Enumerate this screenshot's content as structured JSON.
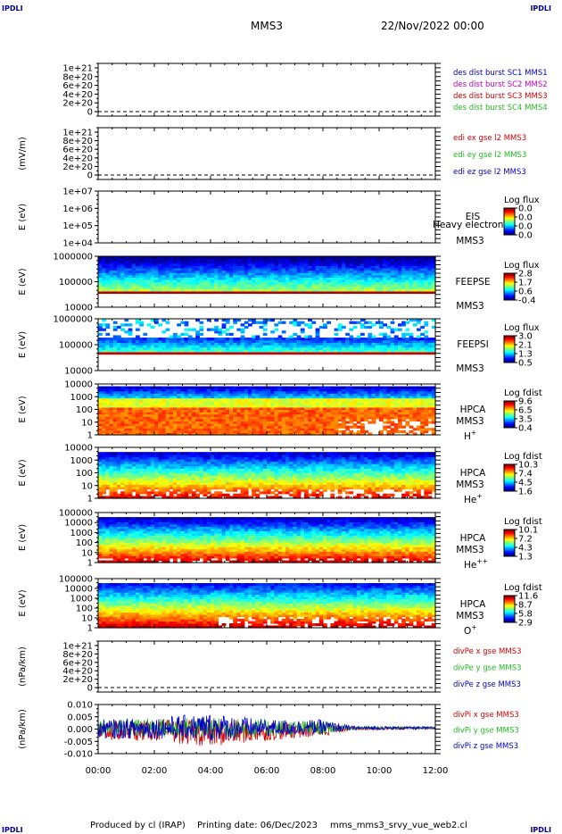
{
  "header": {
    "corner_label": "IPDLI",
    "spacecraft": "MMS3",
    "date": "22/Nov/2022 00:00"
  },
  "footer": {
    "produced_by": "Produced by cl (IRAP)",
    "printing_date": "Printing date: 06/Dec/2023",
    "script_name": "mms_mms3_srvy_vue_web2.cl"
  },
  "x_axis": {
    "ticks": [
      "00:00",
      "02:00",
      "04:00",
      "06:00",
      "08:00",
      "10:00",
      "12:00"
    ],
    "range_hours": [
      0,
      12
    ]
  },
  "colors": {
    "red": "#d40000",
    "magenta": "#c000c0",
    "green": "#22bb22",
    "blue": "#0000c8",
    "spec_red": "#b40000",
    "axis": "#000000"
  },
  "panels": [
    {
      "id": "des_dist_burst",
      "kind": "line",
      "ylabel": "",
      "yticks": [
        "1e+21",
        "8e+20",
        "6e+20",
        "4e+20",
        "2e+20",
        "0"
      ],
      "dashed_zero": true,
      "legend": [
        {
          "text": "des dist burst SC1 MMS1",
          "color": "#0000c8"
        },
        {
          "text": "des dist burst SC2 MMS2",
          "color": "#c000c0"
        },
        {
          "text": "des dist burst SC3 MMS3",
          "color": "#d40000"
        },
        {
          "text": "des dist burst SC4 MMS4",
          "color": "#22bb22"
        }
      ]
    },
    {
      "id": "edi_e",
      "kind": "line",
      "ylabel": "(mV/m)",
      "yticks": [
        "1e+21",
        "8e+20",
        "6e+20",
        "4e+20",
        "2e+20",
        "0"
      ],
      "dashed_zero": true,
      "legend": [
        {
          "text": "edi ex gse l2 MMS3",
          "color": "#d40000"
        },
        {
          "text": "edi ey gse l2 MMS3",
          "color": "#22bb22"
        },
        {
          "text": "edi ez gse l2 MMS3",
          "color": "#0000c8"
        }
      ]
    },
    {
      "id": "eis",
      "kind": "spec",
      "ylabel": "E (eV)",
      "yticks": [
        "1e+07",
        "1e+06",
        "1e+05",
        "1e+04"
      ],
      "label_lines": [
        "EIS",
        "MMS3"
      ],
      "overlap_text": "Heavy electron to",
      "cbar_title": "Log flux",
      "cbar_ticks": [
        "0.0",
        "0.0",
        "0.0",
        "0.0"
      ],
      "spectrum": null
    },
    {
      "id": "feepse",
      "kind": "spec",
      "ylabel": "E (eV)",
      "yticks": [
        "1000000",
        "100000",
        "10000"
      ],
      "label_lines": [
        "FEEPSE",
        "MMS3"
      ],
      "cbar_title": "Log flux",
      "cbar_ticks": [
        "2.8",
        "1.7",
        "0.6",
        "-0.4"
      ],
      "spectrum": {
        "profile": "feepse",
        "sparse": false
      }
    },
    {
      "id": "feepsi",
      "kind": "spec",
      "ylabel": "E (eV)",
      "yticks": [
        "1000000",
        "100000",
        "10000"
      ],
      "label_lines": [
        "FEEPSI",
        "MMS3"
      ],
      "cbar_title": "Log flux",
      "cbar_ticks": [
        "3.0",
        "2.1",
        "1.3",
        "0.5"
      ],
      "spectrum": {
        "profile": "feepsi",
        "sparse": true
      }
    },
    {
      "id": "hpca_h",
      "kind": "spec",
      "ylabel": "E (eV)",
      "yticks": [
        "10000",
        "1000",
        "100",
        "10",
        "1"
      ],
      "label_lines": [
        "HPCA",
        "MMS3"
      ],
      "species": "H",
      "species_sup": "+",
      "cbar_title": "Log fdist",
      "cbar_ticks": [
        "9.6",
        "6.5",
        "3.5",
        "0.4"
      ],
      "spectrum": {
        "profile": "hpca_h",
        "sparse": false
      }
    },
    {
      "id": "hpca_he",
      "kind": "spec",
      "ylabel": "E (eV)",
      "yticks": [
        "10000",
        "1000",
        "100",
        "10",
        "1"
      ],
      "label_lines": [
        "HPCA",
        "MMS3"
      ],
      "species": "He",
      "species_sup": "+",
      "cbar_title": "Log fdist",
      "cbar_ticks": [
        "10.3",
        "7.4",
        "4.5",
        "1.6"
      ],
      "spectrum": {
        "profile": "hpca_he",
        "sparse": false
      }
    },
    {
      "id": "hpca_hepp",
      "kind": "spec",
      "ylabel": "E (eV)",
      "yticks": [
        "100000",
        "10000",
        "1000",
        "100",
        "10",
        "1"
      ],
      "label_lines": [
        "HPCA",
        "MMS3"
      ],
      "species": "He",
      "species_sup": "++",
      "cbar_title": "Log fdist",
      "cbar_ticks": [
        "10.1",
        "7.2",
        "4.3",
        "1.3"
      ],
      "spectrum": {
        "profile": "hpca_hepp",
        "sparse": false
      }
    },
    {
      "id": "hpca_o",
      "kind": "spec",
      "ylabel": "E (eV)",
      "yticks": [
        "100000",
        "10000",
        "1000",
        "100",
        "10",
        "1"
      ],
      "label_lines": [
        "HPCA",
        "MMS3"
      ],
      "species": "O",
      "species_sup": "+",
      "cbar_title": "Log fdist",
      "cbar_ticks": [
        "11.6",
        "8.7",
        "5.8",
        "2.9"
      ],
      "spectrum": {
        "profile": "hpca_o",
        "sparse": false
      }
    },
    {
      "id": "divpe",
      "kind": "line",
      "ylabel": "(nPa/km)",
      "yticks": [
        "1e+21",
        "8e+20",
        "6e+20",
        "4e+20",
        "2e+20",
        "0"
      ],
      "dashed_zero": true,
      "legend": [
        {
          "text": "divPe x gse MMS3",
          "color": "#d40000"
        },
        {
          "text": "divPe y gse MMS3",
          "color": "#22bb22"
        },
        {
          "text": "divPe z gse MMS3",
          "color": "#0000c8"
        }
      ]
    },
    {
      "id": "divpi",
      "kind": "ts",
      "ylabel": "(nPa/km)",
      "yticks": [
        "0.010",
        "0.005",
        "0.000",
        "-0.005",
        "-0.010"
      ],
      "ylim": [
        -0.012,
        0.011
      ],
      "legend": [
        {
          "text": "divPi x gse MMS3",
          "color": "#d40000"
        },
        {
          "text": "divPi y gse MMS3",
          "color": "#22bb22"
        },
        {
          "text": "divPi z gse MMS3",
          "color": "#0000c8"
        }
      ]
    }
  ],
  "chart_data": {
    "type": "heatmap",
    "title": "MMS3",
    "xlabel": "",
    "x_range": [
      "00:00",
      "12:00"
    ],
    "divpi_series": [
      {
        "name": "divPi x gse MMS3",
        "envelope_by_hour": [
          {
            "t": 0,
            "lo": -0.006,
            "hi": 0.003
          },
          {
            "t": 2,
            "lo": -0.006,
            "hi": 0.004
          },
          {
            "t": 4,
            "lo": -0.009,
            "hi": 0.004
          },
          {
            "t": 6,
            "lo": -0.006,
            "hi": 0.003
          },
          {
            "t": 8,
            "lo": -0.004,
            "hi": 0.002
          },
          {
            "t": 9,
            "lo": -0.001,
            "hi": 0.0005
          },
          {
            "t": 12,
            "lo": -0.0005,
            "hi": 0.0005
          }
        ]
      },
      {
        "name": "divPi y gse MMS3",
        "envelope_by_hour": [
          {
            "t": 0,
            "lo": -0.004,
            "hi": 0.004
          },
          {
            "t": 4,
            "lo": -0.005,
            "hi": 0.005
          },
          {
            "t": 8,
            "lo": -0.003,
            "hi": 0.003
          },
          {
            "t": 9,
            "lo": -0.0008,
            "hi": 0.0008
          },
          {
            "t": 12,
            "lo": -0.0005,
            "hi": 0.0005
          }
        ]
      },
      {
        "name": "divPi z gse MMS3",
        "envelope_by_hour": [
          {
            "t": 0,
            "lo": -0.005,
            "hi": 0.004
          },
          {
            "t": 2,
            "lo": -0.005,
            "hi": 0.005
          },
          {
            "t": 4,
            "lo": -0.006,
            "hi": 0.007
          },
          {
            "t": 6,
            "lo": -0.004,
            "hi": 0.004
          },
          {
            "t": 8,
            "lo": -0.003,
            "hi": 0.004
          },
          {
            "t": 9,
            "lo": -0.001,
            "hi": 0.001
          },
          {
            "t": 12,
            "lo": -0.0006,
            "hi": 0.0006
          }
        ]
      }
    ]
  }
}
